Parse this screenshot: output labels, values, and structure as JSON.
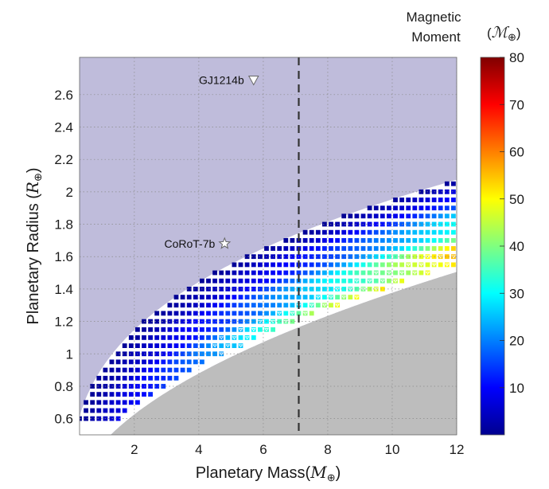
{
  "chart_data": {
    "type": "heatmap",
    "title": "",
    "xlabel": "Planetary Mass",
    "xlabel_unit_symbol": "M",
    "ylabel": "Planetary Radius",
    "ylabel_unit_symbol": "R",
    "earth_subscript": "⊕",
    "xlim": [
      0.3,
      12
    ],
    "ylim": [
      0.5,
      2.83
    ],
    "xticks": [
      2,
      4,
      6,
      8,
      10,
      12
    ],
    "yticks": [
      0.6,
      0.8,
      1,
      1.2,
      1.4,
      1.6,
      1.8,
      2,
      2.2,
      2.4,
      2.6
    ],
    "grid": true,
    "vertical_line_x": 7.1,
    "colorbar": {
      "title_line1": "Magnetic",
      "title_line2": "Moment",
      "unit_symbol": "ℳ",
      "range": [
        0,
        80
      ],
      "ticks": [
        10,
        20,
        30,
        40,
        50,
        60,
        70,
        80
      ]
    },
    "grid_cells": {
      "x_start": 0.3,
      "dx": 0.2,
      "y_start": 0.6,
      "dy": 0.05,
      "lower_boundary": {
        "coef": 0.4455,
        "exp": 0.49
      },
      "upper_boundary": {
        "coef": 0.9137,
        "exp": 0.33
      },
      "stripe_phase_scale": 0.58,
      "moment_scale": 75,
      "moment_exp": 1.15,
      "triangle_threshold": 0.72,
      "triangle_min_mass": 4.5
    },
    "annotations": [
      {
        "label": "GJ1214b",
        "x": 5.7,
        "y": 2.69,
        "marker": "triangle-down"
      },
      {
        "label": "CoRoT-7b",
        "x": 4.8,
        "y": 1.68,
        "marker": "star"
      }
    ],
    "colors": {
      "background": "#bfbcdb",
      "lower_region": "#bdbdbd",
      "white_band": "#ffffff",
      "grid": "#8a8a8a",
      "vertical_line": "#333333"
    }
  }
}
